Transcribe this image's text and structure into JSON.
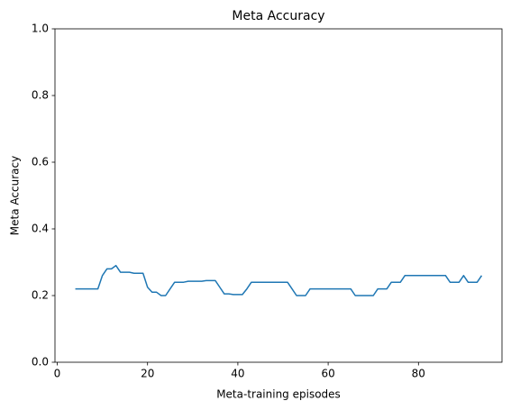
{
  "chart_data": {
    "type": "line",
    "title": "Meta Accuracy",
    "xlabel": "Meta-training episodes",
    "ylabel": "Meta Accuracy",
    "x": [
      4,
      5,
      6,
      7,
      8,
      9,
      10,
      11,
      12,
      13,
      14,
      15,
      16,
      17,
      18,
      19,
      20,
      21,
      22,
      23,
      24,
      25,
      26,
      27,
      28,
      29,
      30,
      31,
      32,
      33,
      34,
      35,
      36,
      37,
      38,
      39,
      40,
      41,
      42,
      43,
      44,
      45,
      46,
      47,
      48,
      49,
      50,
      51,
      52,
      53,
      54,
      55,
      56,
      57,
      58,
      59,
      60,
      61,
      62,
      63,
      64,
      65,
      66,
      67,
      68,
      69,
      70,
      71,
      72,
      73,
      74,
      75,
      76,
      77,
      78,
      79,
      80,
      81,
      82,
      83,
      84,
      85,
      86,
      87,
      88,
      89,
      90,
      91,
      92,
      93,
      94
    ],
    "series": [
      {
        "name": "Meta Accuracy",
        "color": "#1f77b4",
        "values": [
          0.22,
          0.22,
          0.22,
          0.22,
          0.22,
          0.22,
          0.26,
          0.28,
          0.28,
          0.29,
          0.27,
          0.27,
          0.27,
          0.267,
          0.267,
          0.267,
          0.225,
          0.21,
          0.21,
          0.2,
          0.2,
          0.22,
          0.24,
          0.24,
          0.24,
          0.243,
          0.243,
          0.243,
          0.243,
          0.245,
          0.245,
          0.245,
          0.225,
          0.205,
          0.205,
          0.203,
          0.203,
          0.203,
          0.22,
          0.24,
          0.24,
          0.24,
          0.24,
          0.24,
          0.24,
          0.24,
          0.24,
          0.24,
          0.22,
          0.2,
          0.2,
          0.2,
          0.22,
          0.22,
          0.22,
          0.22,
          0.22,
          0.22,
          0.22,
          0.22,
          0.22,
          0.22,
          0.2,
          0.2,
          0.2,
          0.2,
          0.2,
          0.22,
          0.22,
          0.22,
          0.24,
          0.24,
          0.24,
          0.26,
          0.26,
          0.26,
          0.26,
          0.26,
          0.26,
          0.26,
          0.26,
          0.26,
          0.26,
          0.24,
          0.24,
          0.24,
          0.26,
          0.24,
          0.24,
          0.24,
          0.26
        ]
      }
    ],
    "xlim": [
      -0.5,
      98.5
    ],
    "xticks": [
      0,
      20,
      40,
      60,
      80
    ],
    "ylim": [
      0,
      1
    ],
    "yticks": [
      {
        "value": 0,
        "label": "0.0"
      },
      {
        "value": 0.2,
        "label": "0.2"
      },
      {
        "value": 0.4,
        "label": "0.4"
      },
      {
        "value": 0.6,
        "label": "0.6"
      },
      {
        "value": 0.8,
        "label": "0.8"
      },
      {
        "value": 1,
        "label": "1.0"
      }
    ],
    "grid": false
  }
}
